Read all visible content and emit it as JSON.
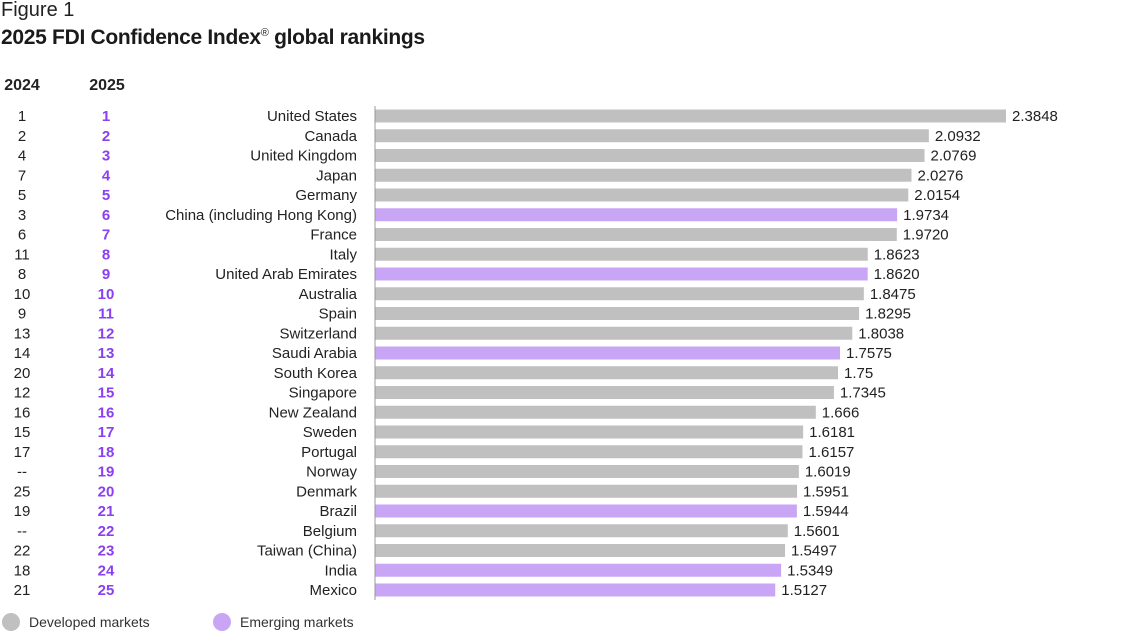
{
  "figure_label": "Figure 1",
  "title": "2025 FDI Confidence Index",
  "title_mark": "®",
  "title_suffix": " global rankings",
  "colors": {
    "developed": "#c0c0c0",
    "emerging": "#c8a5f5",
    "rank_accent": "#8a3ff0",
    "axis": "#999999"
  },
  "legend": [
    {
      "label": "Developed markets",
      "group": "developed"
    },
    {
      "label": "Emerging markets",
      "group": "emerging"
    }
  ],
  "chart_data": {
    "type": "bar",
    "orientation": "horizontal",
    "column_headers": {
      "rank_2024": "2024",
      "rank_2025": "2025"
    },
    "xlim": [
      0,
      2.45
    ],
    "rows": [
      {
        "country": "United States",
        "rank_2024": "1",
        "rank_2025": "1",
        "value": 2.3848,
        "label": "2.3848",
        "group": "developed"
      },
      {
        "country": "Canada",
        "rank_2024": "2",
        "rank_2025": "2",
        "value": 2.0932,
        "label": "2.0932",
        "group": "developed"
      },
      {
        "country": "United Kingdom",
        "rank_2024": "4",
        "rank_2025": "3",
        "value": 2.0769,
        "label": "2.0769",
        "group": "developed"
      },
      {
        "country": "Japan",
        "rank_2024": "7",
        "rank_2025": "4",
        "value": 2.0276,
        "label": "2.0276",
        "group": "developed"
      },
      {
        "country": "Germany",
        "rank_2024": "5",
        "rank_2025": "5",
        "value": 2.0154,
        "label": "2.0154",
        "group": "developed"
      },
      {
        "country": "China (including Hong Kong)",
        "rank_2024": "3",
        "rank_2025": "6",
        "value": 1.9734,
        "label": "1.9734",
        "group": "emerging"
      },
      {
        "country": "France",
        "rank_2024": "6",
        "rank_2025": "7",
        "value": 1.972,
        "label": "1.9720",
        "group": "developed"
      },
      {
        "country": "Italy",
        "rank_2024": "11",
        "rank_2025": "8",
        "value": 1.8623,
        "label": "1.8623",
        "group": "developed"
      },
      {
        "country": "United Arab Emirates",
        "rank_2024": "8",
        "rank_2025": "9",
        "value": 1.862,
        "label": "1.8620",
        "group": "emerging"
      },
      {
        "country": "Australia",
        "rank_2024": "10",
        "rank_2025": "10",
        "value": 1.8475,
        "label": "1.8475",
        "group": "developed"
      },
      {
        "country": "Spain",
        "rank_2024": "9",
        "rank_2025": "11",
        "value": 1.8295,
        "label": "1.8295",
        "group": "developed"
      },
      {
        "country": "Switzerland",
        "rank_2024": "13",
        "rank_2025": "12",
        "value": 1.8038,
        "label": "1.8038",
        "group": "developed"
      },
      {
        "country": "Saudi Arabia",
        "rank_2024": "14",
        "rank_2025": "13",
        "value": 1.7575,
        "label": "1.7575",
        "group": "emerging"
      },
      {
        "country": "South Korea",
        "rank_2024": "20",
        "rank_2025": "14",
        "value": 1.75,
        "label": "1.75",
        "group": "developed"
      },
      {
        "country": "Singapore",
        "rank_2024": "12",
        "rank_2025": "15",
        "value": 1.7345,
        "label": "1.7345",
        "group": "developed"
      },
      {
        "country": "New Zealand",
        "rank_2024": "16",
        "rank_2025": "16",
        "value": 1.666,
        "label": "1.666",
        "group": "developed"
      },
      {
        "country": "Sweden",
        "rank_2024": "15",
        "rank_2025": "17",
        "value": 1.6181,
        "label": "1.6181",
        "group": "developed"
      },
      {
        "country": "Portugal",
        "rank_2024": "17",
        "rank_2025": "18",
        "value": 1.6157,
        "label": "1.6157",
        "group": "developed"
      },
      {
        "country": "Norway",
        "rank_2024": "--",
        "rank_2025": "19",
        "value": 1.6019,
        "label": "1.6019",
        "group": "developed"
      },
      {
        "country": "Denmark",
        "rank_2024": "25",
        "rank_2025": "20",
        "value": 1.5951,
        "label": "1.5951",
        "group": "developed"
      },
      {
        "country": "Brazil",
        "rank_2024": "19",
        "rank_2025": "21",
        "value": 1.5944,
        "label": "1.5944",
        "group": "emerging"
      },
      {
        "country": "Belgium",
        "rank_2024": "--",
        "rank_2025": "22",
        "value": 1.5601,
        "label": "1.5601",
        "group": "developed"
      },
      {
        "country": "Taiwan (China)",
        "rank_2024": "22",
        "rank_2025": "23",
        "value": 1.5497,
        "label": "1.5497",
        "group": "developed"
      },
      {
        "country": "India",
        "rank_2024": "18",
        "rank_2025": "24",
        "value": 1.5349,
        "label": "1.5349",
        "group": "emerging"
      },
      {
        "country": "Mexico",
        "rank_2024": "21",
        "rank_2025": "25",
        "value": 1.5127,
        "label": "1.5127",
        "group": "emerging"
      }
    ]
  }
}
